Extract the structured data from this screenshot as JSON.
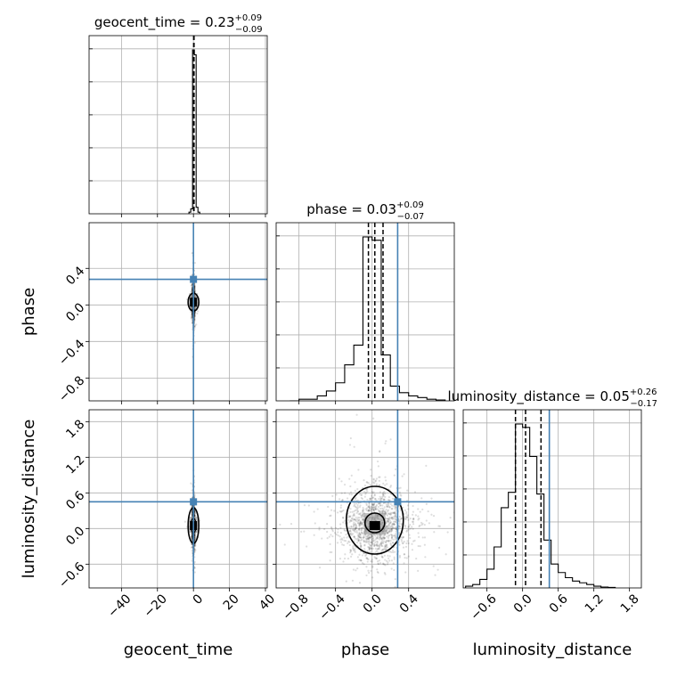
{
  "chart_data": {
    "type": "corner",
    "parameters": [
      "geocent_time",
      "phase",
      "luminosity_distance"
    ],
    "axis_labels": {
      "geocent_time": "geocent_time",
      "phase": "phase",
      "luminosity_distance": "luminosity_distance"
    },
    "ranges": {
      "geocent_time": [
        -58,
        41
      ],
      "phase": [
        -1.05,
        0.9
      ],
      "luminosity_distance": [
        -1.0,
        2.0
      ]
    },
    "ticks": {
      "geocent_time": [
        "−40",
        "−20",
        "0",
        "20",
        "40"
      ],
      "phase": [
        "−0.8",
        "−0.4",
        "0.0",
        "0.4"
      ],
      "luminosity_distance": [
        "−0.6",
        "0.0",
        "0.6",
        "1.2",
        "1.8"
      ]
    },
    "tick_values": {
      "geocent_time": [
        -40,
        -20,
        0,
        20,
        40
      ],
      "phase": [
        -0.8,
        -0.4,
        0.0,
        0.4
      ],
      "luminosity_distance": [
        -0.6,
        0.0,
        0.6,
        1.2,
        1.8
      ]
    },
    "titles": [
      {
        "param": "geocent_time",
        "text": "geocent_time = 0.23",
        "plus": "+0.09",
        "minus": "−0.09"
      },
      {
        "param": "phase",
        "text": "phase = 0.03",
        "plus": "+0.09",
        "minus": "−0.07"
      },
      {
        "param": "luminosity_distance",
        "text": "luminosity_distance = 0.05",
        "plus": "+0.26",
        "minus": "−0.17"
      }
    ],
    "injected": {
      "phase": 0.28,
      "luminosity_distance": 0.45
    },
    "quantiles": {
      "geocent_time": [
        0.14,
        0.23,
        0.32
      ],
      "phase": [
        -0.04,
        0.03,
        0.12
      ],
      "luminosity_distance": [
        -0.12,
        0.05,
        0.31
      ]
    },
    "histograms": {
      "geocent_time": {
        "edges": [
          -2.5,
          -1.5,
          -0.5,
          0.5,
          1.5,
          2.5,
          3.5
        ],
        "counts": [
          0.01,
          0.03,
          1.0,
          0.97,
          0.04,
          0.01
        ]
      },
      "phase": {
        "edges": [
          -0.9,
          -0.8,
          -0.7,
          -0.6,
          -0.5,
          -0.4,
          -0.3,
          -0.2,
          -0.1,
          0.0,
          0.1,
          0.2,
          0.3,
          0.4,
          0.5,
          0.6,
          0.7,
          0.8
        ],
        "counts": [
          0.0,
          0.01,
          0.01,
          0.03,
          0.06,
          0.11,
          0.22,
          0.34,
          1.0,
          0.98,
          0.28,
          0.09,
          0.05,
          0.03,
          0.02,
          0.01,
          0.005
        ]
      },
      "luminosity_distance": {
        "edges": [
          -0.96,
          -0.84,
          -0.72,
          -0.6,
          -0.48,
          -0.36,
          -0.24,
          -0.12,
          0.0,
          0.12,
          0.24,
          0.36,
          0.48,
          0.6,
          0.72,
          0.84,
          0.96,
          1.08,
          1.2,
          1.32,
          1.44,
          1.56
        ],
        "counts": [
          0.01,
          0.02,
          0.05,
          0.11,
          0.24,
          0.47,
          0.56,
          0.96,
          0.94,
          0.77,
          0.55,
          0.28,
          0.14,
          0.09,
          0.06,
          0.04,
          0.03,
          0.02,
          0.01,
          0.005,
          0.003
        ]
      }
    },
    "grid": true
  }
}
